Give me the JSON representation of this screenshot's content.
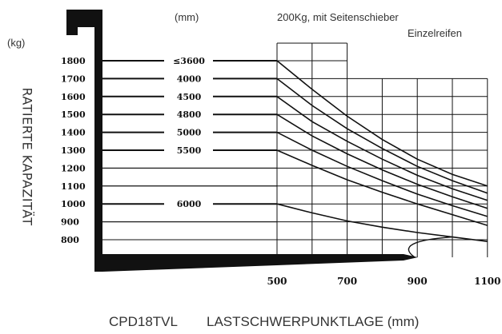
{
  "chart_data": {
    "type": "line",
    "model": "CPD18TVL",
    "xlabel": "LASTSCHWERPUNKTLAGE (mm)",
    "ylabel": "RATIERTE KAPAZITÄT",
    "y_unit": "(kg)",
    "mast_unit": "(mm)",
    "note_line1": "200Kg, mit Seitenschieber",
    "note_line2": "Einzelreifen",
    "x_ticks": [
      "500",
      "700",
      "900",
      "1100"
    ],
    "y_ticks": [
      "1800",
      "1700",
      "1600",
      "1500",
      "1400",
      "1300",
      "1200",
      "1100",
      "1000",
      "900",
      "800"
    ],
    "xlim": [
      500,
      1100
    ],
    "ylim": [
      750,
      1800
    ],
    "series": [
      {
        "name": "≤3600",
        "x": [
          500,
          600,
          700,
          800,
          900,
          1000,
          1100
        ],
        "y": [
          1800,
          1640,
          1490,
          1360,
          1250,
          1165,
          1100
        ]
      },
      {
        "name": "4000",
        "x": [
          500,
          600,
          700,
          800,
          900,
          1000,
          1100
        ],
        "y": [
          1700,
          1550,
          1420,
          1310,
          1210,
          1130,
          1060
        ]
      },
      {
        "name": "4500",
        "x": [
          500,
          600,
          700,
          800,
          900,
          1000,
          1100
        ],
        "y": [
          1600,
          1460,
          1350,
          1250,
          1160,
          1085,
          1020
        ]
      },
      {
        "name": "4800",
        "x": [
          500,
          600,
          700,
          800,
          900,
          1000,
          1100
        ],
        "y": [
          1500,
          1380,
          1280,
          1190,
          1110,
          1040,
          975
        ]
      },
      {
        "name": "5000",
        "x": [
          500,
          600,
          700,
          800,
          900,
          1000,
          1100
        ],
        "y": [
          1400,
          1300,
          1210,
          1130,
          1055,
          990,
          930
        ]
      },
      {
        "name": "5500",
        "x": [
          500,
          600,
          700,
          800,
          900,
          1000,
          1100
        ],
        "y": [
          1300,
          1215,
          1135,
          1065,
          1000,
          940,
          880
        ]
      },
      {
        "name": "6000",
        "x": [
          500,
          600,
          700,
          800,
          900,
          1000,
          1100
        ],
        "y": [
          1000,
          950,
          905,
          870,
          840,
          815,
          790
        ]
      }
    ]
  }
}
